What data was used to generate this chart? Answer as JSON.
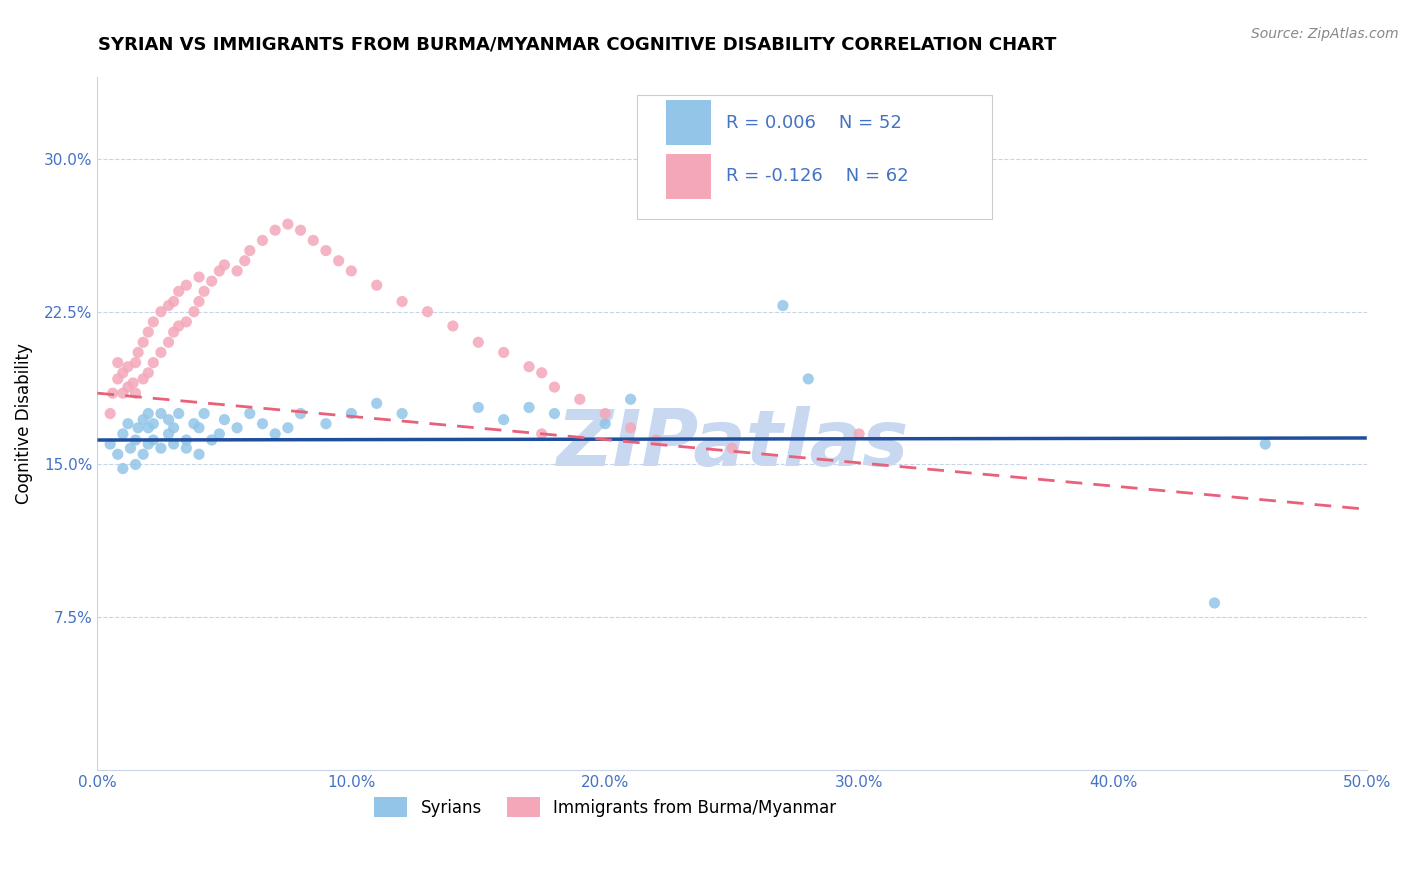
{
  "title": "SYRIAN VS IMMIGRANTS FROM BURMA/MYANMAR COGNITIVE DISABILITY CORRELATION CHART",
  "source": "Source: ZipAtlas.com",
  "ylabel": "Cognitive Disability",
  "xlim": [
    0.0,
    0.5
  ],
  "ylim": [
    0.0,
    0.34
  ],
  "xticks": [
    0.0,
    0.1,
    0.2,
    0.3,
    0.4,
    0.5
  ],
  "xticklabels": [
    "0.0%",
    "10.0%",
    "20.0%",
    "30.0%",
    "40.0%",
    "50.0%"
  ],
  "yticks": [
    0.075,
    0.15,
    0.225,
    0.3
  ],
  "yticklabels": [
    "7.5%",
    "15.0%",
    "22.5%",
    "30.0%"
  ],
  "legend_r_blue": "R = 0.006",
  "legend_n_blue": "N = 52",
  "legend_r_pink": "R = -0.126",
  "legend_n_pink": "N = 62",
  "legend_label_blue": "Syrians",
  "legend_label_pink": "Immigrants from Burma/Myanmar",
  "blue_color": "#92C5E8",
  "pink_color": "#F4A7B9",
  "trend_blue_color": "#1F4E9C",
  "trend_pink_color": "#E8607A",
  "watermark": "ZIPatlas",
  "watermark_color": "#C8D8F0",
  "axis_color": "#4472C4",
  "tick_color": "#4472C4",
  "grid_color": "#C8D4E8",
  "blue_trend_x0": 0.0,
  "blue_trend_y0": 0.162,
  "blue_trend_x1": 0.5,
  "blue_trend_y1": 0.163,
  "pink_trend_x0": 0.0,
  "pink_trend_y0": 0.185,
  "pink_trend_x1": 0.5,
  "pink_trend_y1": 0.128,
  "blue_scatter_x": [
    0.005,
    0.008,
    0.01,
    0.01,
    0.012,
    0.013,
    0.015,
    0.015,
    0.016,
    0.018,
    0.018,
    0.02,
    0.02,
    0.02,
    0.022,
    0.022,
    0.025,
    0.025,
    0.028,
    0.028,
    0.03,
    0.03,
    0.032,
    0.035,
    0.035,
    0.038,
    0.04,
    0.04,
    0.042,
    0.045,
    0.048,
    0.05,
    0.055,
    0.06,
    0.065,
    0.07,
    0.075,
    0.08,
    0.09,
    0.1,
    0.11,
    0.12,
    0.15,
    0.16,
    0.17,
    0.18,
    0.2,
    0.21,
    0.27,
    0.28,
    0.44,
    0.46
  ],
  "blue_scatter_y": [
    0.16,
    0.155,
    0.165,
    0.148,
    0.17,
    0.158,
    0.162,
    0.15,
    0.168,
    0.155,
    0.172,
    0.16,
    0.168,
    0.175,
    0.162,
    0.17,
    0.158,
    0.175,
    0.165,
    0.172,
    0.16,
    0.168,
    0.175,
    0.162,
    0.158,
    0.17,
    0.155,
    0.168,
    0.175,
    0.162,
    0.165,
    0.172,
    0.168,
    0.175,
    0.17,
    0.165,
    0.168,
    0.175,
    0.17,
    0.175,
    0.18,
    0.175,
    0.178,
    0.172,
    0.178,
    0.175,
    0.17,
    0.182,
    0.228,
    0.192,
    0.082,
    0.16
  ],
  "pink_scatter_x": [
    0.005,
    0.006,
    0.008,
    0.008,
    0.01,
    0.01,
    0.012,
    0.012,
    0.014,
    0.015,
    0.015,
    0.016,
    0.018,
    0.018,
    0.02,
    0.02,
    0.022,
    0.022,
    0.025,
    0.025,
    0.028,
    0.028,
    0.03,
    0.03,
    0.032,
    0.032,
    0.035,
    0.035,
    0.038,
    0.04,
    0.04,
    0.042,
    0.045,
    0.048,
    0.05,
    0.055,
    0.058,
    0.06,
    0.065,
    0.07,
    0.075,
    0.08,
    0.085,
    0.09,
    0.095,
    0.1,
    0.11,
    0.12,
    0.13,
    0.14,
    0.15,
    0.16,
    0.17,
    0.175,
    0.175,
    0.18,
    0.19,
    0.2,
    0.21,
    0.22,
    0.25,
    0.3
  ],
  "pink_scatter_y": [
    0.175,
    0.185,
    0.192,
    0.2,
    0.185,
    0.195,
    0.188,
    0.198,
    0.19,
    0.2,
    0.185,
    0.205,
    0.192,
    0.21,
    0.195,
    0.215,
    0.2,
    0.22,
    0.205,
    0.225,
    0.21,
    0.228,
    0.215,
    0.23,
    0.218,
    0.235,
    0.22,
    0.238,
    0.225,
    0.23,
    0.242,
    0.235,
    0.24,
    0.245,
    0.248,
    0.245,
    0.25,
    0.255,
    0.26,
    0.265,
    0.268,
    0.265,
    0.26,
    0.255,
    0.25,
    0.245,
    0.238,
    0.23,
    0.225,
    0.218,
    0.21,
    0.205,
    0.198,
    0.195,
    0.165,
    0.188,
    0.182,
    0.175,
    0.168,
    0.162,
    0.158,
    0.165
  ]
}
